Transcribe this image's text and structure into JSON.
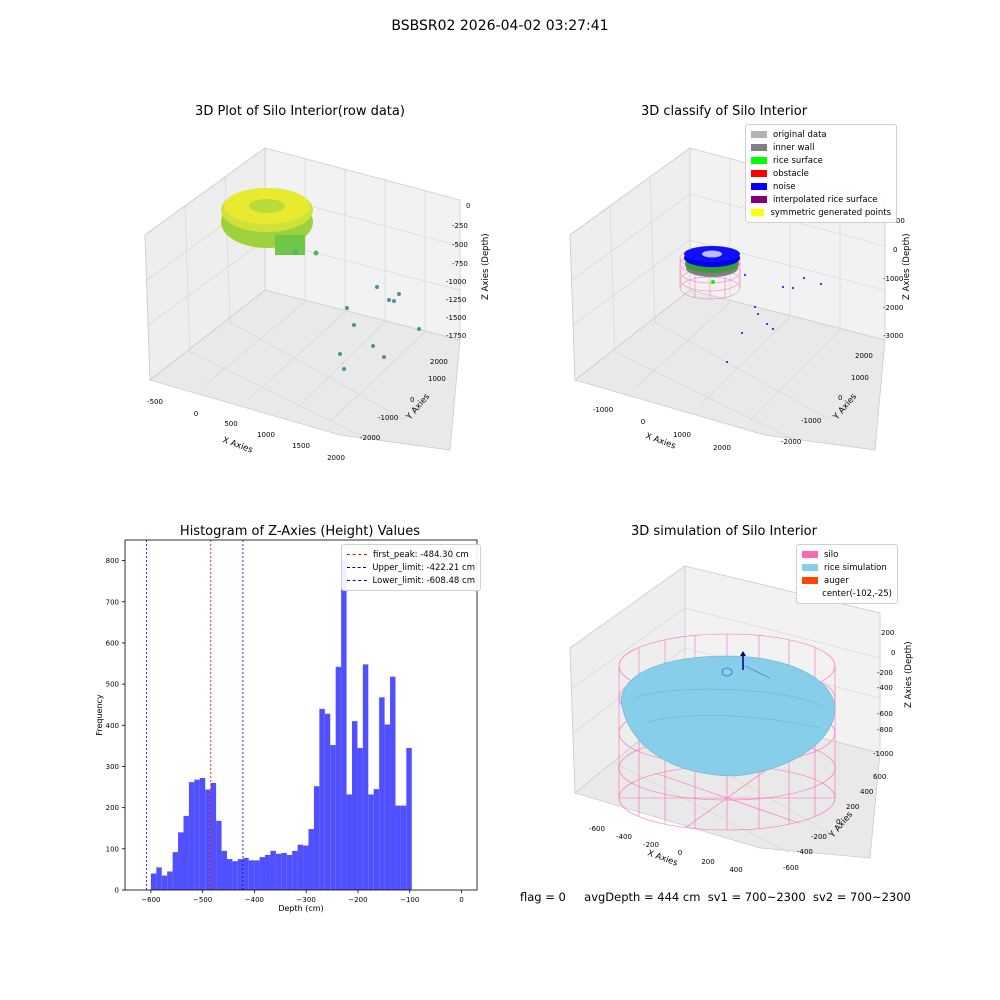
{
  "page": {
    "suptitle": "BSBSR02 2026-04-02 03:27:41"
  },
  "panel1": {
    "title": "3D Plot of Silo Interior(row data)",
    "xlabel": "X Axies",
    "ylabel": "Y Axies",
    "zlabel": "Z Axies (Depth)",
    "xticks": [
      "-500",
      "0",
      "500",
      "1000",
      "1500",
      "2000"
    ],
    "yticks": [
      "2000",
      "1000",
      "0",
      "-1000",
      "-2000"
    ],
    "zticks": [
      "0",
      "-250",
      "-500",
      "-750",
      "-1000",
      "-1250",
      "-1500",
      "-1750"
    ]
  },
  "panel2": {
    "title": "3D classify of Silo Interior",
    "xlabel": "X Axies",
    "ylabel": "Y Axies",
    "zlabel": "Z Axies (Depth)",
    "xticks": [
      "-1000",
      "0",
      "1000",
      "2000"
    ],
    "yticks": [
      "2000",
      "1000",
      "0",
      "-1000",
      "-2000"
    ],
    "zticks": [
      "1000",
      "0",
      "-1000",
      "-2000",
      "-3000"
    ],
    "legend": [
      {
        "label": "original data",
        "color": "#b3b3b3"
      },
      {
        "label": "inner wall",
        "color": "#808080"
      },
      {
        "label": "rice surface",
        "color": "#00ff00"
      },
      {
        "label": "obstacle",
        "color": "#ff0000"
      },
      {
        "label": "noise",
        "color": "#0000ff"
      },
      {
        "label": "interpolated rice surface",
        "color": "#800080"
      },
      {
        "label": "symmetric generated points",
        "color": "#ffff00"
      }
    ]
  },
  "panel4": {
    "title": "3D simulation of Silo Interior",
    "xlabel": "X Axies",
    "ylabel": "Y Axies",
    "zlabel": "Z Axies (Depth)",
    "xticks": [
      "-600",
      "-400",
      "-200",
      "0",
      "200",
      "400"
    ],
    "yticks": [
      "600",
      "400",
      "200",
      "0",
      "-200",
      "-400",
      "-600"
    ],
    "zticks": [
      "200",
      "0",
      "-200",
      "-400",
      "-600",
      "-800",
      "-1000"
    ],
    "legend": [
      {
        "label": "silo",
        "color": "#ff69b4"
      },
      {
        "label": "rice simulation",
        "color": "#87ceeb"
      },
      {
        "label": "auger",
        "color": "#ff4500"
      },
      {
        "label": "center(-102,-25)",
        "color": ""
      }
    ]
  },
  "chart_data": [
    {
      "type": "bar",
      "title": "Histogram of Z-Axies (Height) Values",
      "xlabel": "Depth (cm)",
      "ylabel": "Frequency",
      "xlim": [
        -650,
        30
      ],
      "ylim": [
        0,
        850
      ],
      "xticks": [
        -600,
        -500,
        -400,
        -300,
        -200,
        -100,
        0
      ],
      "yticks": [
        0,
        100,
        200,
        300,
        400,
        500,
        600,
        700,
        800
      ],
      "bin_width": 10.5,
      "bin_start": -600,
      "color": "#5050ff",
      "values": [
        40,
        55,
        35,
        45,
        92,
        140,
        180,
        262,
        268,
        272,
        244,
        260,
        168,
        95,
        75,
        70,
        75,
        78,
        72,
        72,
        80,
        85,
        95,
        88,
        90,
        85,
        95,
        110,
        108,
        148,
        252,
        440,
        428,
        352,
        542,
        800,
        232,
        410,
        345,
        548,
        232,
        245,
        468,
        402,
        518,
        205,
        205,
        345
      ],
      "vlines": [
        {
          "label": "first_peak: -484.30 cm",
          "x": -484.3,
          "color": "#ff0000"
        },
        {
          "label": "Upper_limit: -422.21 cm",
          "x": -422.21,
          "color": "#0000cc"
        },
        {
          "label": "Lower_limit: -608.48 cm",
          "x": -608.48,
          "color": "#0000cc"
        }
      ],
      "legend_position": "top-right"
    }
  ],
  "footer": {
    "flag": "flag = 0",
    "avg": "avgDepth = 444 cm",
    "sv1": "sv1 = 700~2300",
    "sv2": "sv2 = 700~2300"
  }
}
